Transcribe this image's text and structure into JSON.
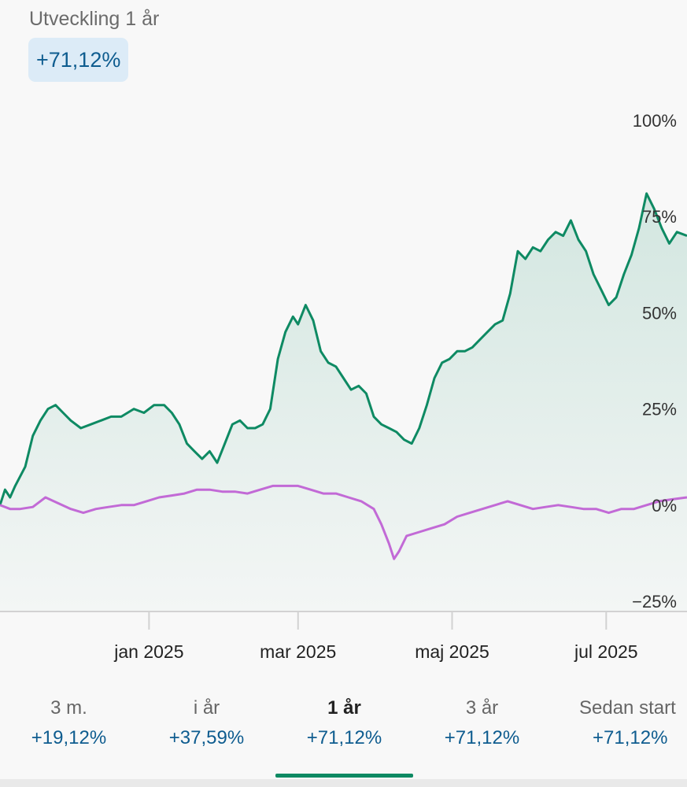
{
  "header": {
    "title": "Utveckling 1 år",
    "badge": "+71,12%"
  },
  "colors": {
    "fund_line": "#0e8a63",
    "index_line": "#c26ad6",
    "accent": "#0e5c8f"
  },
  "chart_data": {
    "type": "line",
    "title": "Utveckling 1 år",
    "ylim": [
      -25,
      100
    ],
    "yticks": [
      "100%",
      "75%",
      "50%",
      "25%",
      "0%",
      "−25%"
    ],
    "ytick_values": [
      100,
      75,
      50,
      25,
      0,
      -25
    ],
    "x_tick_labels": [
      "jan 2025",
      "mar 2025",
      "maj 2025",
      "jul 2025"
    ],
    "x_tick_dates": [
      "2025-01-01",
      "2025-03-01",
      "2025-05-01",
      "2025-07-01"
    ],
    "x_range": [
      "2024-11-03",
      "2025-08-02"
    ],
    "grid": false,
    "series": [
      {
        "color": "#0e8a63",
        "filled": true,
        "points": [
          [
            "2024-11-03",
            0
          ],
          [
            "2024-11-05",
            4
          ],
          [
            "2024-11-07",
            2
          ],
          [
            "2024-11-09",
            5
          ],
          [
            "2024-11-13",
            10
          ],
          [
            "2024-11-16",
            18
          ],
          [
            "2024-11-19",
            22
          ],
          [
            "2024-11-22",
            25
          ],
          [
            "2024-11-25",
            26
          ],
          [
            "2024-11-28",
            24
          ],
          [
            "2024-12-01",
            22
          ],
          [
            "2024-12-05",
            20
          ],
          [
            "2024-12-09",
            21
          ],
          [
            "2024-12-13",
            22
          ],
          [
            "2024-12-17",
            23
          ],
          [
            "2024-12-21",
            23
          ],
          [
            "2024-12-26",
            25
          ],
          [
            "2024-12-30",
            24
          ],
          [
            "2025-01-03",
            26
          ],
          [
            "2025-01-07",
            26
          ],
          [
            "2025-01-10",
            24
          ],
          [
            "2025-01-13",
            21
          ],
          [
            "2025-01-16",
            16
          ],
          [
            "2025-01-19",
            14
          ],
          [
            "2025-01-22",
            12
          ],
          [
            "2025-01-25",
            14
          ],
          [
            "2025-01-28",
            11
          ],
          [
            "2025-01-31",
            16
          ],
          [
            "2025-02-03",
            21
          ],
          [
            "2025-02-06",
            22
          ],
          [
            "2025-02-09",
            20
          ],
          [
            "2025-02-12",
            20
          ],
          [
            "2025-02-15",
            21
          ],
          [
            "2025-02-18",
            25
          ],
          [
            "2025-02-21",
            38
          ],
          [
            "2025-02-24",
            45
          ],
          [
            "2025-02-27",
            49
          ],
          [
            "2025-03-01",
            47
          ],
          [
            "2025-03-04",
            52
          ],
          [
            "2025-03-07",
            48
          ],
          [
            "2025-03-10",
            40
          ],
          [
            "2025-03-13",
            37
          ],
          [
            "2025-03-16",
            36
          ],
          [
            "2025-03-19",
            33
          ],
          [
            "2025-03-22",
            30
          ],
          [
            "2025-03-25",
            31
          ],
          [
            "2025-03-28",
            29
          ],
          [
            "2025-03-31",
            23
          ],
          [
            "2025-04-03",
            21
          ],
          [
            "2025-04-06",
            20
          ],
          [
            "2025-04-09",
            19
          ],
          [
            "2025-04-12",
            17
          ],
          [
            "2025-04-15",
            16
          ],
          [
            "2025-04-18",
            20
          ],
          [
            "2025-04-21",
            26
          ],
          [
            "2025-04-24",
            33
          ],
          [
            "2025-04-27",
            37
          ],
          [
            "2025-04-30",
            38
          ],
          [
            "2025-05-03",
            40
          ],
          [
            "2025-05-06",
            40
          ],
          [
            "2025-05-09",
            41
          ],
          [
            "2025-05-12",
            43
          ],
          [
            "2025-05-15",
            45
          ],
          [
            "2025-05-18",
            47
          ],
          [
            "2025-05-21",
            48
          ],
          [
            "2025-05-24",
            55
          ],
          [
            "2025-05-27",
            66
          ],
          [
            "2025-05-30",
            64
          ],
          [
            "2025-06-02",
            67
          ],
          [
            "2025-06-05",
            66
          ],
          [
            "2025-06-08",
            69
          ],
          [
            "2025-06-11",
            71
          ],
          [
            "2025-06-14",
            70
          ],
          [
            "2025-06-17",
            74
          ],
          [
            "2025-06-20",
            69
          ],
          [
            "2025-06-23",
            66
          ],
          [
            "2025-06-26",
            60
          ],
          [
            "2025-06-29",
            56
          ],
          [
            "2025-07-02",
            52
          ],
          [
            "2025-07-05",
            54
          ],
          [
            "2025-07-08",
            60
          ],
          [
            "2025-07-11",
            65
          ],
          [
            "2025-07-14",
            72
          ],
          [
            "2025-07-17",
            81
          ],
          [
            "2025-07-20",
            77
          ],
          [
            "2025-07-23",
            72
          ],
          [
            "2025-07-26",
            68
          ],
          [
            "2025-07-29",
            71
          ],
          [
            "2025-08-02",
            70
          ]
        ]
      },
      {
        "color": "#c26ad6",
        "filled": false,
        "points": [
          [
            "2024-11-03",
            0
          ],
          [
            "2024-11-07",
            -1
          ],
          [
            "2024-11-11",
            -1
          ],
          [
            "2024-11-16",
            -0.5
          ],
          [
            "2024-11-21",
            2
          ],
          [
            "2024-11-26",
            0.5
          ],
          [
            "2024-12-01",
            -1
          ],
          [
            "2024-12-06",
            -2
          ],
          [
            "2024-12-11",
            -1
          ],
          [
            "2024-12-16",
            -0.5
          ],
          [
            "2024-12-21",
            0
          ],
          [
            "2024-12-26",
            0
          ],
          [
            "2024-12-31",
            1
          ],
          [
            "2025-01-05",
            2
          ],
          [
            "2025-01-10",
            2.5
          ],
          [
            "2025-01-15",
            3
          ],
          [
            "2025-01-20",
            4
          ],
          [
            "2025-01-25",
            4
          ],
          [
            "2025-01-30",
            3.5
          ],
          [
            "2025-02-04",
            3.5
          ],
          [
            "2025-02-09",
            3
          ],
          [
            "2025-02-14",
            4
          ],
          [
            "2025-02-19",
            5
          ],
          [
            "2025-02-24",
            5
          ],
          [
            "2025-03-01",
            5
          ],
          [
            "2025-03-06",
            4
          ],
          [
            "2025-03-11",
            3
          ],
          [
            "2025-03-16",
            3
          ],
          [
            "2025-03-21",
            2
          ],
          [
            "2025-03-26",
            1
          ],
          [
            "2025-03-31",
            -1
          ],
          [
            "2025-04-03",
            -5
          ],
          [
            "2025-04-06",
            -10
          ],
          [
            "2025-04-08",
            -14
          ],
          [
            "2025-04-10",
            -12
          ],
          [
            "2025-04-13",
            -8
          ],
          [
            "2025-04-18",
            -7
          ],
          [
            "2025-04-23",
            -6
          ],
          [
            "2025-04-28",
            -5
          ],
          [
            "2025-05-03",
            -3
          ],
          [
            "2025-05-08",
            -2
          ],
          [
            "2025-05-13",
            -1
          ],
          [
            "2025-05-18",
            0
          ],
          [
            "2025-05-23",
            1
          ],
          [
            "2025-05-28",
            0
          ],
          [
            "2025-06-02",
            -1
          ],
          [
            "2025-06-07",
            -0.5
          ],
          [
            "2025-06-12",
            0
          ],
          [
            "2025-06-17",
            -0.5
          ],
          [
            "2025-06-22",
            -1
          ],
          [
            "2025-06-27",
            -1
          ],
          [
            "2025-07-02",
            -2
          ],
          [
            "2025-07-07",
            -1
          ],
          [
            "2025-07-12",
            -1
          ],
          [
            "2025-07-17",
            0
          ],
          [
            "2025-07-22",
            1
          ],
          [
            "2025-07-27",
            1.5
          ],
          [
            "2025-08-02",
            2
          ]
        ]
      }
    ]
  },
  "tabs": [
    {
      "label": "3 m.",
      "value": "+19,12%",
      "active": false
    },
    {
      "label": "i år",
      "value": "+37,59%",
      "active": false
    },
    {
      "label": "1 år",
      "value": "+71,12%",
      "active": true
    },
    {
      "label": "3 år",
      "value": "+71,12%",
      "active": false
    },
    {
      "label": "Sedan start",
      "value": "+71,12%",
      "active": false
    }
  ]
}
